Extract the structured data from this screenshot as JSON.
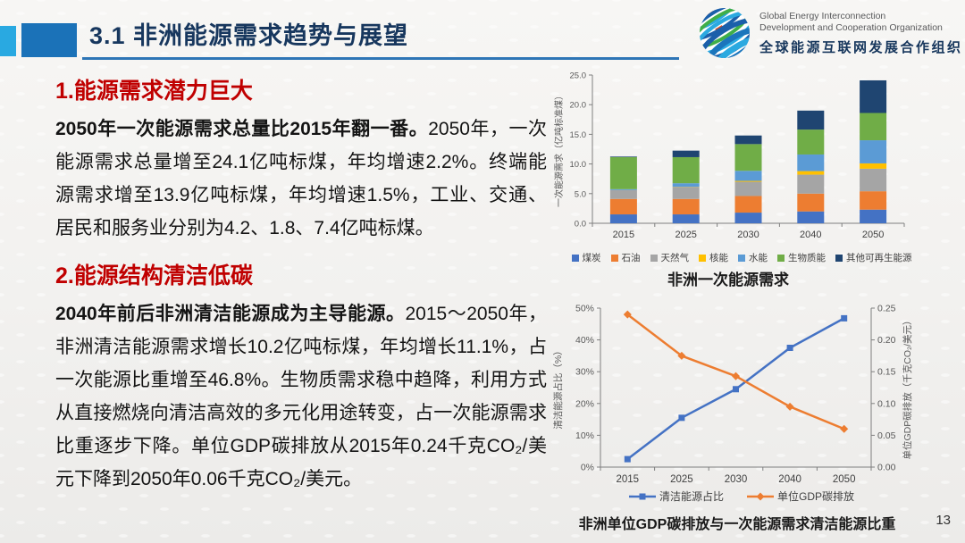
{
  "header": {
    "title": "3.1 非洲能源需求趋势与展望",
    "logo": {
      "name_en_line1": "Global Energy Interconnection",
      "name_en_line2": "Development and Cooperation Organization",
      "name_cn": "全球能源互联网发展合作组织"
    }
  },
  "colors": {
    "accent_red": "#C00000",
    "title_navy": "#17375E",
    "underline_blue": "#2E75B6",
    "deco_light_blue": "#29A9E1",
    "deco_dark_blue": "#1B72B8"
  },
  "sections": [
    {
      "heading": "1.能源需求潜力巨大",
      "lead": "2050年一次能源需求总量比2015年翻一番。",
      "body": "2050年，一次能源需求总量增至24.1亿吨标煤，年均增速2.2%。终端能源需求增至13.9亿吨标煤，年均增速1.5%，工业、交通、居民和服务业分别为4.2、1.8、7.4亿吨标煤。"
    },
    {
      "heading": "2.能源结构清洁低碳",
      "lead": "2040年前后非洲清洁能源成为主导能源。",
      "body": "2015～2050年，非洲清洁能源需求增长10.2亿吨标煤，年均增长11.1%，占一次能源比重增至46.8%。生物质需求稳中趋降，利用方式从直接燃烧向清洁高效的多元化用途转变，占一次能源需求比重逐步下降。单位GDP碳排放从2015年0.24千克CO₂/美元下降到2050年0.06千克CO₂/美元。"
    }
  ],
  "page_number": "13",
  "chart_data": [
    {
      "type": "bar",
      "stacked": true,
      "title": "非洲一次能源需求",
      "ylabel": "一次能源需求（亿吨标准煤）",
      "categories": [
        "2015",
        "2025",
        "2030",
        "2040",
        "2050"
      ],
      "ylim": [
        0,
        25
      ],
      "ytick_step": 5,
      "grid": false,
      "legend_position": "bottom",
      "series": [
        {
          "name": "煤炭",
          "color": "#4472C4",
          "values": [
            1.5,
            1.5,
            1.8,
            2.0,
            2.3
          ]
        },
        {
          "name": "石油",
          "color": "#ED7D31",
          "values": [
            2.6,
            2.6,
            2.8,
            3.0,
            3.1
          ]
        },
        {
          "name": "天然气",
          "color": "#A5A5A5",
          "values": [
            1.5,
            2.0,
            2.4,
            3.2,
            3.8
          ]
        },
        {
          "name": "核能",
          "color": "#FFC000",
          "values": [
            0.0,
            0.05,
            0.15,
            0.6,
            0.9
          ]
        },
        {
          "name": "水能",
          "color": "#5B9BD5",
          "values": [
            0.15,
            0.6,
            1.7,
            2.8,
            3.9
          ]
        },
        {
          "name": "生物质能",
          "color": "#70AD47",
          "values": [
            5.4,
            4.4,
            4.5,
            4.2,
            4.6
          ]
        },
        {
          "name": "其他可再生能源",
          "color": "#1F4571",
          "values": [
            0.1,
            1.1,
            1.45,
            3.2,
            5.5
          ]
        }
      ]
    },
    {
      "type": "line",
      "title": "非洲单位GDP碳排放与一次能源需求清洁能源比重",
      "categories": [
        "2015",
        "2025",
        "2030",
        "2040",
        "2050"
      ],
      "left_axis": {
        "label": "清洁能源占比（%）",
        "lim": [
          0,
          50
        ],
        "step": 10,
        "format": "percent"
      },
      "right_axis": {
        "label": "单位GDP碳排放（千克CO₂/美元）",
        "lim": [
          0,
          0.25
        ],
        "step": 0.05,
        "format": "fixed2"
      },
      "grid": false,
      "legend_position": "bottom",
      "series": [
        {
          "name": "清洁能源占比",
          "axis": "left",
          "color": "#4472C4",
          "marker": "square",
          "values": [
            2.5,
            15.5,
            24.5,
            37.5,
            46.8
          ]
        },
        {
          "name": "单位GDP碳排放",
          "axis": "right",
          "color": "#ED7D31",
          "marker": "diamond",
          "values": [
            0.24,
            0.175,
            0.143,
            0.095,
            0.06
          ]
        }
      ]
    }
  ]
}
